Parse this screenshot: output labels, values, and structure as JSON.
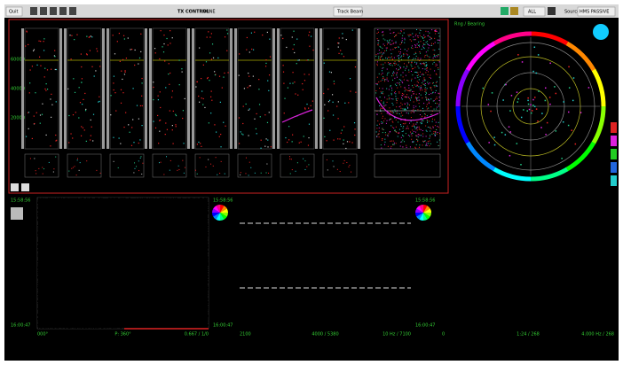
{
  "toolbar": {
    "quit": "Quit",
    "tx_control": "TX CONTROL",
    "tx_value": "NONE",
    "track_beam": "Track Beam",
    "filter": "ALL",
    "source_label": "Source",
    "source_value": "HMS PASSIVE"
  },
  "waterfall": {
    "y_labels": [
      "60000",
      "40000",
      "20000"
    ]
  },
  "polar": {
    "title": "Rng / Bearing"
  },
  "panels": [
    {
      "time_top": "15:58:56",
      "time_bottom": "16:00:47",
      "footer": [
        "000°",
        "P: 360°",
        "0.667 / 1/0"
      ]
    },
    {
      "time_top": "15:58:56",
      "time_bottom": "16:00:47",
      "footer": [
        "2100",
        "4000 / 5380",
        "10 Hz / 7100"
      ]
    },
    {
      "time_top": "15:58:56",
      "time_bottom": "16:00:47",
      "footer": [
        "0",
        "1:24 / 268",
        "4.000 Hz / 268"
      ]
    }
  ]
}
